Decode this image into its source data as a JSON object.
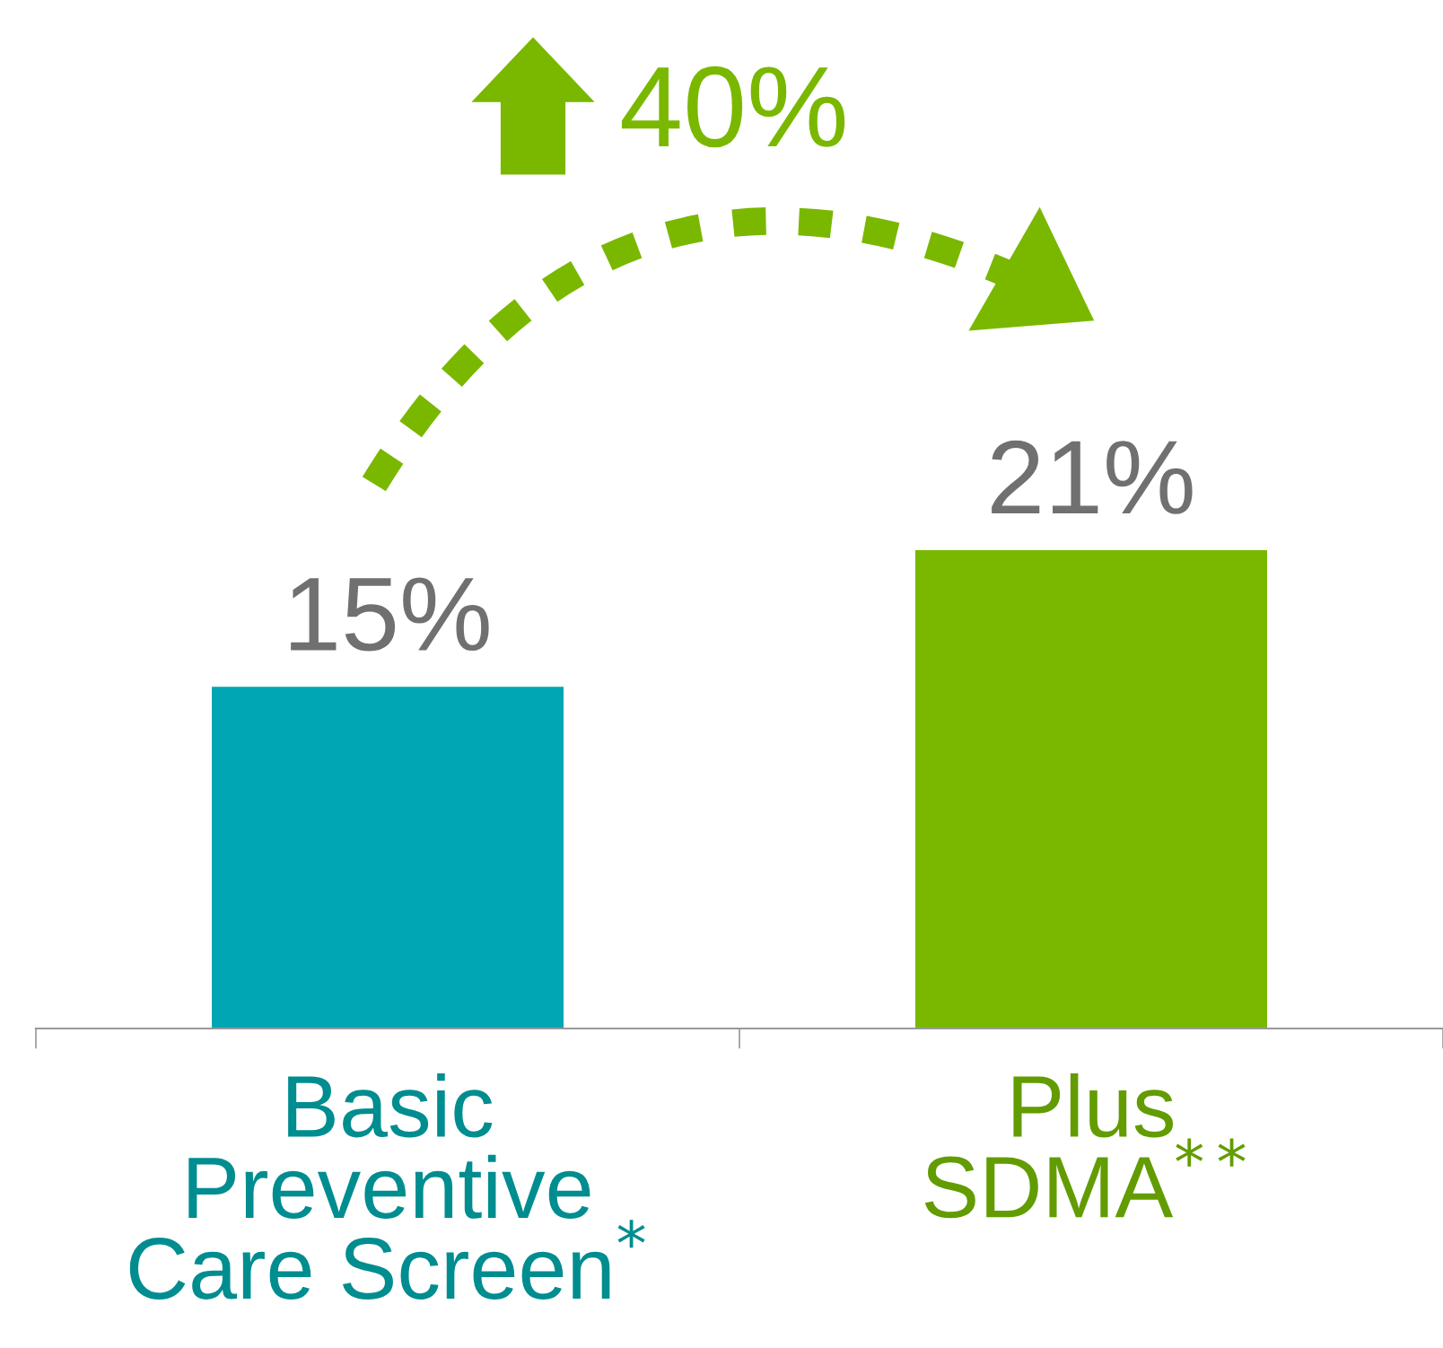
{
  "chart_data": {
    "type": "bar",
    "categories": [
      "Basic\nPreventive\nCare Screen$^{*}$",
      "Plus\nSDMA$^{**}$"
    ],
    "values": [
      15,
      21
    ],
    "colors": [
      "#00a6b4",
      "#7ab800"
    ],
    "value_labels": [
      "15%",
      "21%"
    ],
    "annotations": [
      "40%"
    ],
    "grid": false,
    "legend": false
  }
}
